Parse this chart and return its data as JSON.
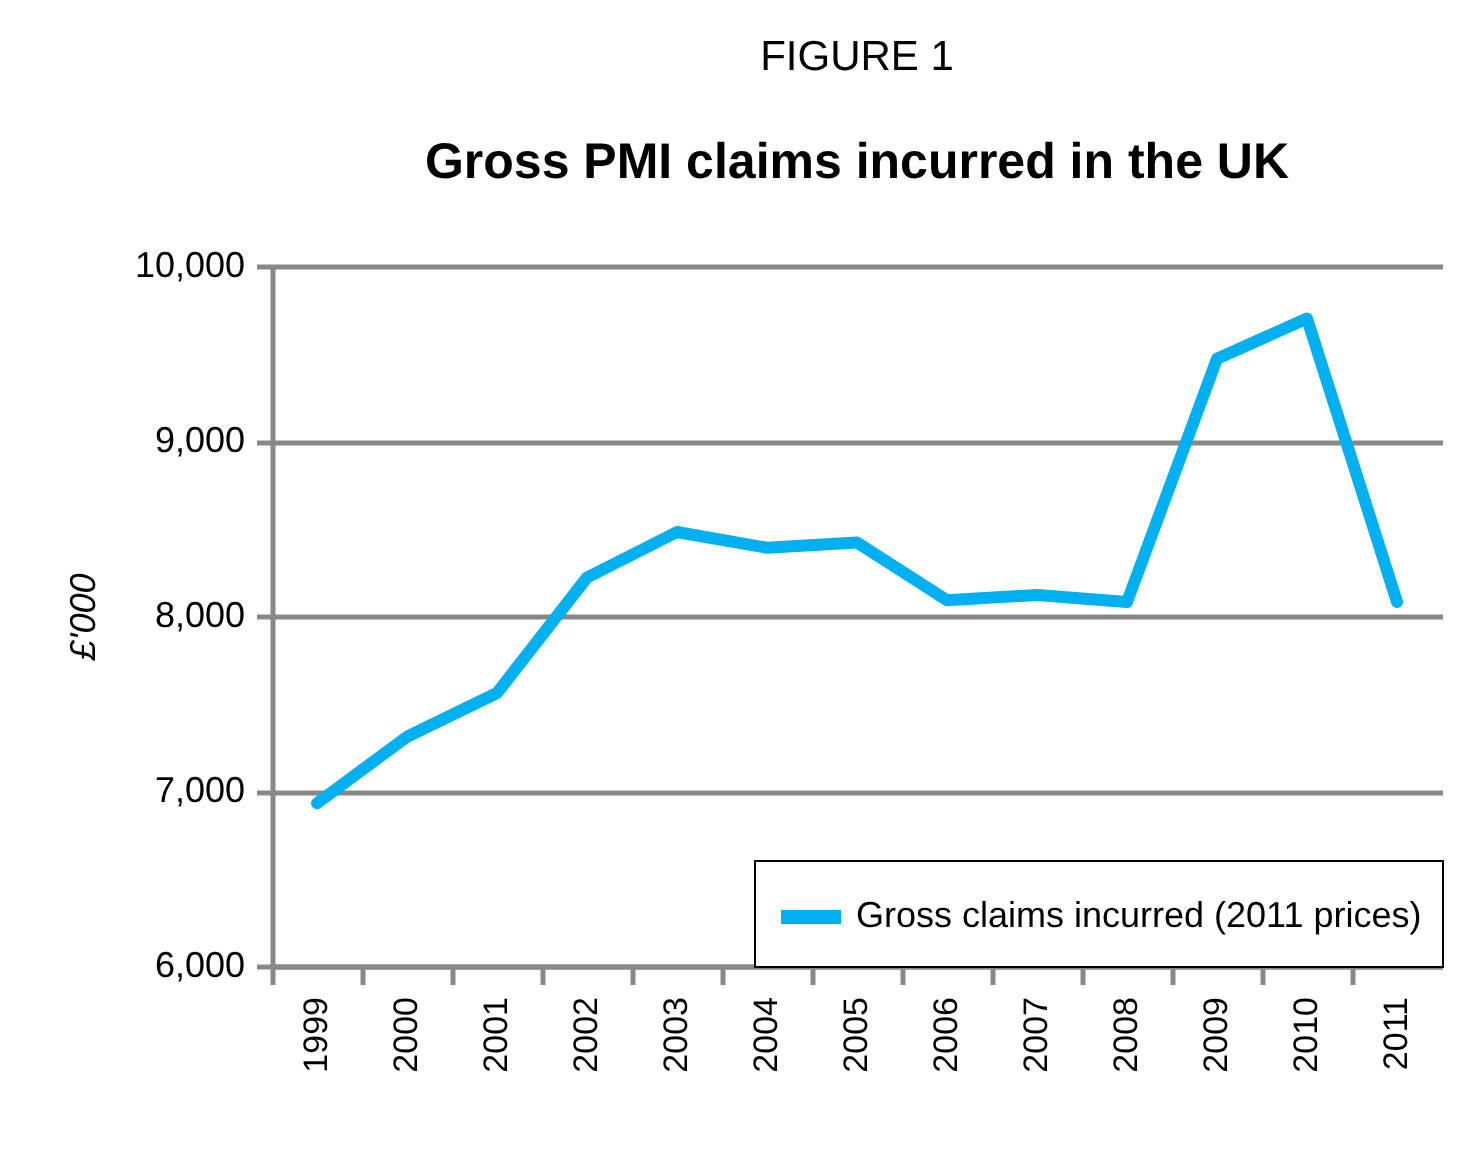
{
  "chart_data": {
    "type": "line",
    "title": "FIGURE 1",
    "subtitle": "Gross PMI claims incurred in the UK",
    "ylabel": "£'000",
    "categories": [
      "1999",
      "2000",
      "2001",
      "2002",
      "2003",
      "2004",
      "2005",
      "2006",
      "2007",
      "2008",
      "2009",
      "2010",
      "2011"
    ],
    "series": [
      {
        "name": "Gross claims incurred (2011 prices)",
        "color": "#00b0f0",
        "values": [
          6930,
          7310,
          7560,
          8220,
          8480,
          8390,
          8420,
          8090,
          8120,
          8080,
          9470,
          9700,
          8080
        ]
      }
    ],
    "ylim": [
      6000,
      10000
    ],
    "yticks": [
      {
        "value": 6000,
        "label": "6,000"
      },
      {
        "value": 7000,
        "label": "7,000"
      },
      {
        "value": 8000,
        "label": "8,000"
      },
      {
        "value": 9000,
        "label": "9,000"
      },
      {
        "value": 10000,
        "label": "10,000"
      }
    ],
    "grid": "y",
    "legend": "bottom right",
    "marker": "none",
    "line_style": "solid"
  }
}
